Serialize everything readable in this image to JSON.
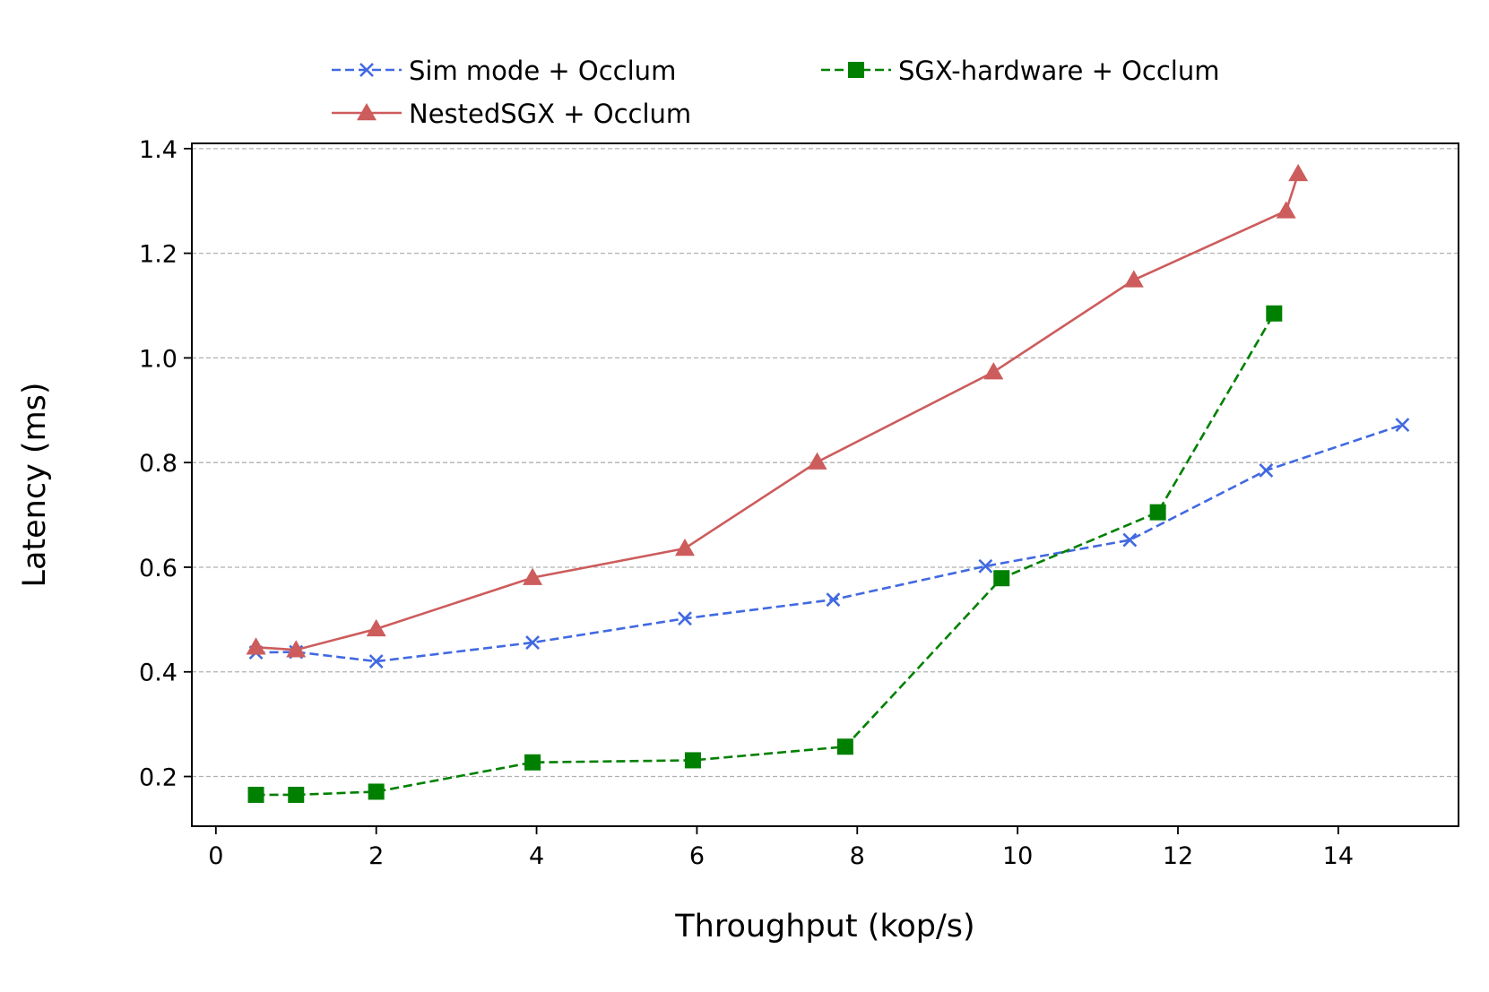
{
  "chart_data": {
    "type": "line",
    "title": "",
    "xlabel": "Throughput (kop/s)",
    "ylabel": "Latency (ms)",
    "xlim": [
      -0.3,
      15.5
    ],
    "ylim": [
      0.105,
      1.41
    ],
    "xticks": [
      0,
      2,
      4,
      6,
      8,
      10,
      12,
      14
    ],
    "yticks": [
      0.2,
      0.4,
      0.6,
      0.8,
      1.0,
      1.2,
      1.4
    ],
    "xtick_labels": [
      "0",
      "2",
      "4",
      "6",
      "8",
      "10",
      "12",
      "14"
    ],
    "ytick_labels": [
      "0.2",
      "0.4",
      "0.6",
      "0.8",
      "1.0",
      "1.2",
      "1.4"
    ],
    "grid": "y-dashed",
    "legend_position": "top-center, outside",
    "series": [
      {
        "name": "Sim mode + Occlum",
        "color": "#4169e1",
        "line_style": "dashed",
        "marker": "x",
        "x": [
          0.5,
          1.0,
          2.0,
          3.95,
          5.85,
          7.7,
          9.6,
          11.4,
          13.1,
          14.8
        ],
        "y": [
          0.437,
          0.438,
          0.42,
          0.456,
          0.502,
          0.538,
          0.602,
          0.652,
          0.785,
          0.872
        ]
      },
      {
        "name": "SGX-hardware + Occlum",
        "color": "#008000",
        "line_style": "dashed",
        "marker": "square",
        "x": [
          0.5,
          1.0,
          2.0,
          3.95,
          5.95,
          7.85,
          9.8,
          11.75,
          13.2
        ],
        "y": [
          0.165,
          0.165,
          0.171,
          0.227,
          0.231,
          0.257,
          0.579,
          0.705,
          1.085
        ]
      },
      {
        "name": "NestedSGX + Occlum",
        "color": "#cd5c5c",
        "line_style": "solid",
        "marker": "triangle",
        "x": [
          0.5,
          1.0,
          2.0,
          3.95,
          5.85,
          7.5,
          9.7,
          11.45,
          13.35,
          13.5
        ],
        "y": [
          0.447,
          0.442,
          0.482,
          0.58,
          0.636,
          0.801,
          0.973,
          1.149,
          1.281,
          1.352
        ]
      }
    ]
  }
}
